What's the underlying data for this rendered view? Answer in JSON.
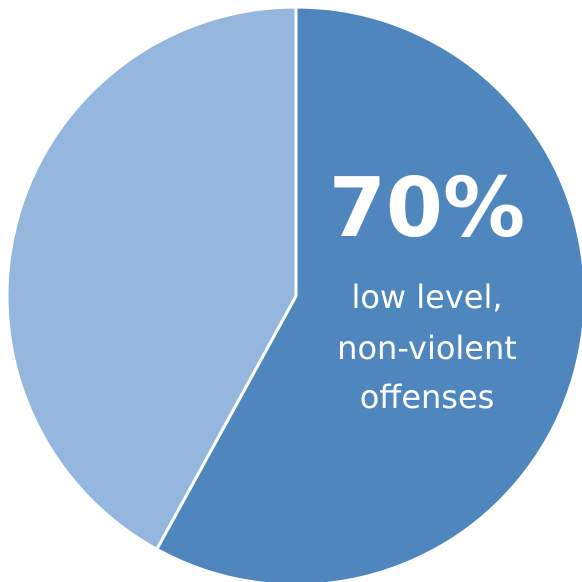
{
  "chart_data": {
    "type": "pie",
    "slices": [
      {
        "value": 58,
        "color": "#4f86bd"
      },
      {
        "value": 42,
        "color": "#95b7de"
      }
    ],
    "annotation": {
      "value": "70%",
      "lines": [
        "low level,",
        "non-violent",
        "offenses"
      ]
    },
    "start_angle_deg": 0,
    "direction": "clockwise",
    "colors": {
      "separator": "#ffffff",
      "text": "#ffffff"
    }
  }
}
